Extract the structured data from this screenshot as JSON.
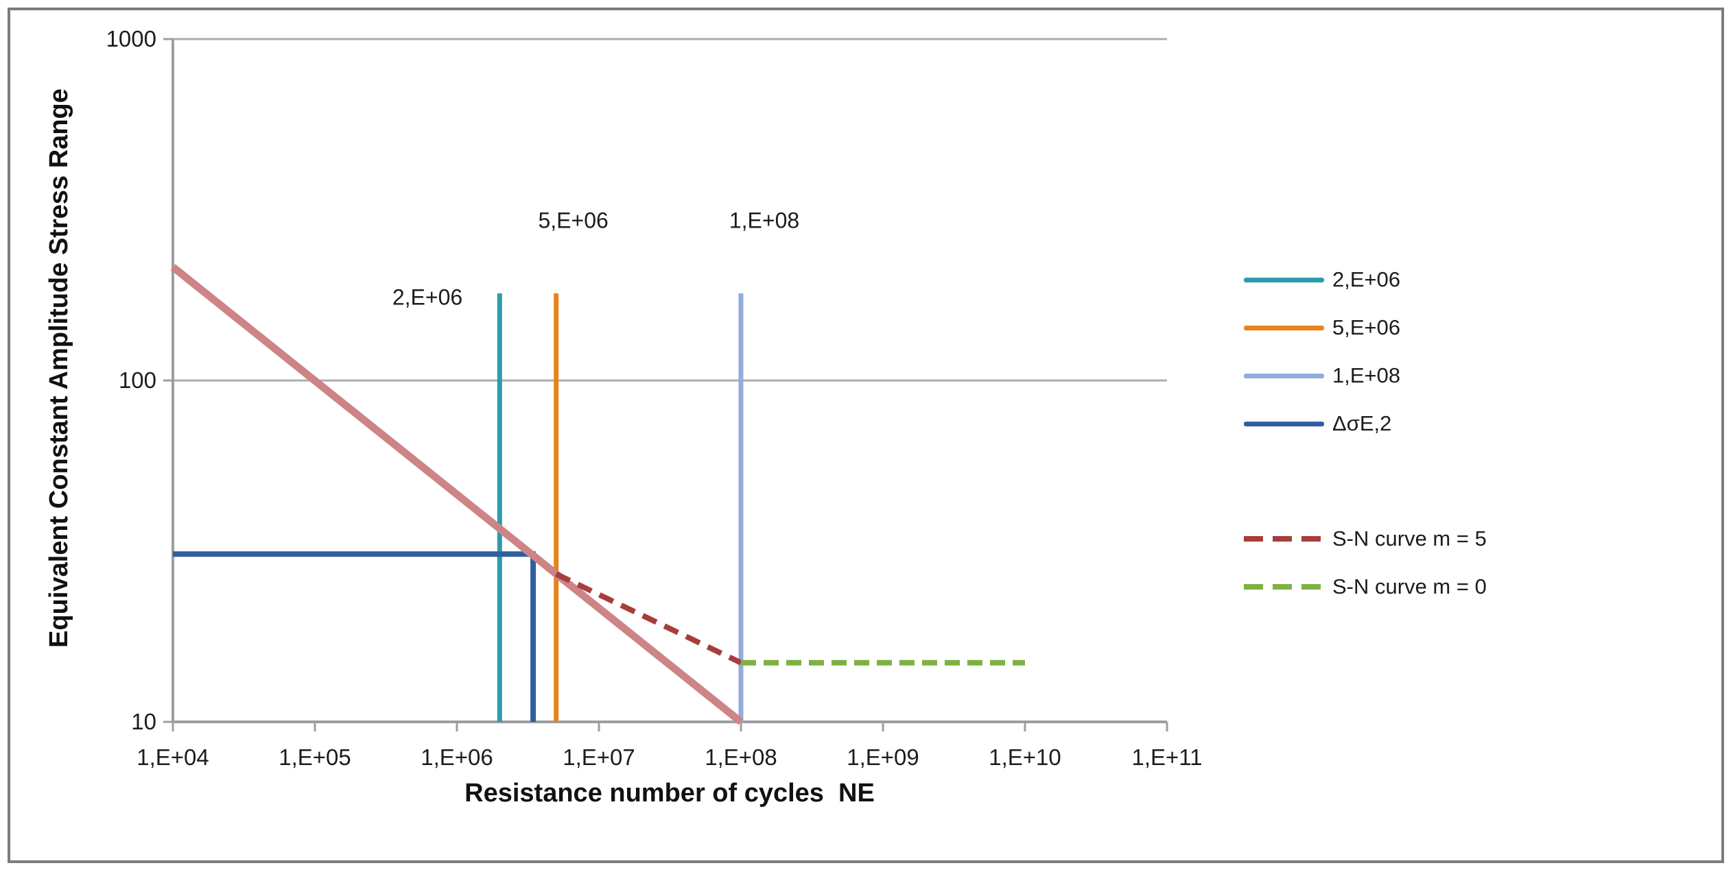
{
  "chart_data": {
    "type": "line",
    "title": "",
    "x_axis": {
      "label": "Resistance number of cycles  NE",
      "scale": "log",
      "min": 10000,
      "max": 100000000000,
      "ticks": [
        {
          "value": 10000,
          "label": "1,E+04"
        },
        {
          "value": 100000,
          "label": "1,E+05"
        },
        {
          "value": 1000000,
          "label": "1,E+06"
        },
        {
          "value": 10000000,
          "label": "1,E+07"
        },
        {
          "value": 100000000,
          "label": "1,E+08"
        },
        {
          "value": 1000000000,
          "label": "1,E+09"
        },
        {
          "value": 10000000000,
          "label": "1,E+10"
        },
        {
          "value": 100000000000,
          "label": "1,E+11"
        }
      ]
    },
    "y_axis": {
      "label": "Equivalent Constant Amplitude Stress Range",
      "scale": "log",
      "min": 10,
      "max": 1000,
      "ticks": [
        {
          "value": 10,
          "label": "10"
        },
        {
          "value": 100,
          "label": "100"
        },
        {
          "value": 1000,
          "label": "1000"
        }
      ]
    },
    "gridlines": {
      "y_values": [
        100,
        1000
      ]
    },
    "style": {
      "axis_color": "#9e9e9e",
      "grid_color": "#acacac",
      "text_color": "#1c1c1c",
      "frame_border_color": "#7c7c7c"
    },
    "series": [
      {
        "id": "vline-2e06",
        "label": "2,E+06",
        "color": "#2e9aae",
        "width": 7,
        "dash": null,
        "points": [
          [
            2000000,
            10
          ],
          [
            2000000,
            180
          ]
        ]
      },
      {
        "id": "vline-5e06",
        "label": "5,E+06",
        "color": "#e8821c",
        "width": 7,
        "dash": null,
        "points": [
          [
            5000000,
            10
          ],
          [
            5000000,
            180
          ]
        ]
      },
      {
        "id": "vline-1e08",
        "label": "1,E+08",
        "color": "#93acdb",
        "width": 7,
        "dash": null,
        "points": [
          [
            100000000,
            10
          ],
          [
            100000000,
            180
          ]
        ]
      },
      {
        "id": "delta-sigma-e2",
        "label": "ΔσE,2",
        "color": "#2f5f9e",
        "width": 8,
        "dash": null,
        "points": [
          [
            10000,
            31
          ],
          [
            3440000,
            31
          ],
          [
            3440000,
            10
          ]
        ]
      },
      {
        "id": "sn-curve-solid",
        "label": null,
        "color": "#cd8486",
        "width": 11,
        "dash": null,
        "points": [
          [
            10000,
            215
          ],
          [
            100000000,
            10
          ]
        ]
      },
      {
        "id": "sn-curve-m5",
        "label": "S-N curve m = 5",
        "color": "#a63e3b",
        "width": 8,
        "dash": [
          22,
          13
        ],
        "points": [
          [
            5000000,
            27.1
          ],
          [
            100000000,
            14.9
          ]
        ]
      },
      {
        "id": "sn-curve-m0",
        "label": "S-N curve m = 0",
        "color": "#7eb142",
        "width": 8,
        "dash": [
          22,
          11
        ],
        "points": [
          [
            100000000,
            14.9
          ],
          [
            10000000000,
            14.9
          ]
        ]
      }
    ],
    "annotations": [
      {
        "id": "label-2e06",
        "text": "2,E+06",
        "x": 620000,
        "y": 175
      },
      {
        "id": "label-5e06",
        "text": "5,E+06",
        "x": 6600000,
        "y": 294
      },
      {
        "id": "label-1e08",
        "text": "1,E+08",
        "x": 146000000,
        "y": 294
      }
    ],
    "legend": {
      "position": "right",
      "items": [
        {
          "label": "2,E+06",
          "color": "#2e9aae",
          "dashed": false,
          "group": 1
        },
        {
          "label": "5,E+06",
          "color": "#e8821c",
          "dashed": false,
          "group": 1
        },
        {
          "label": "1,E+08",
          "color": "#93acdb",
          "dashed": false,
          "group": 1
        },
        {
          "label": "ΔσE,2",
          "color": "#2f5f9e",
          "dashed": false,
          "group": 1
        },
        {
          "label": "S-N curve m = 5",
          "color": "#a63e3b",
          "dashed": true,
          "group": 2
        },
        {
          "label": "S-N curve m = 0",
          "color": "#7eb142",
          "dashed": true,
          "group": 2
        }
      ]
    }
  }
}
